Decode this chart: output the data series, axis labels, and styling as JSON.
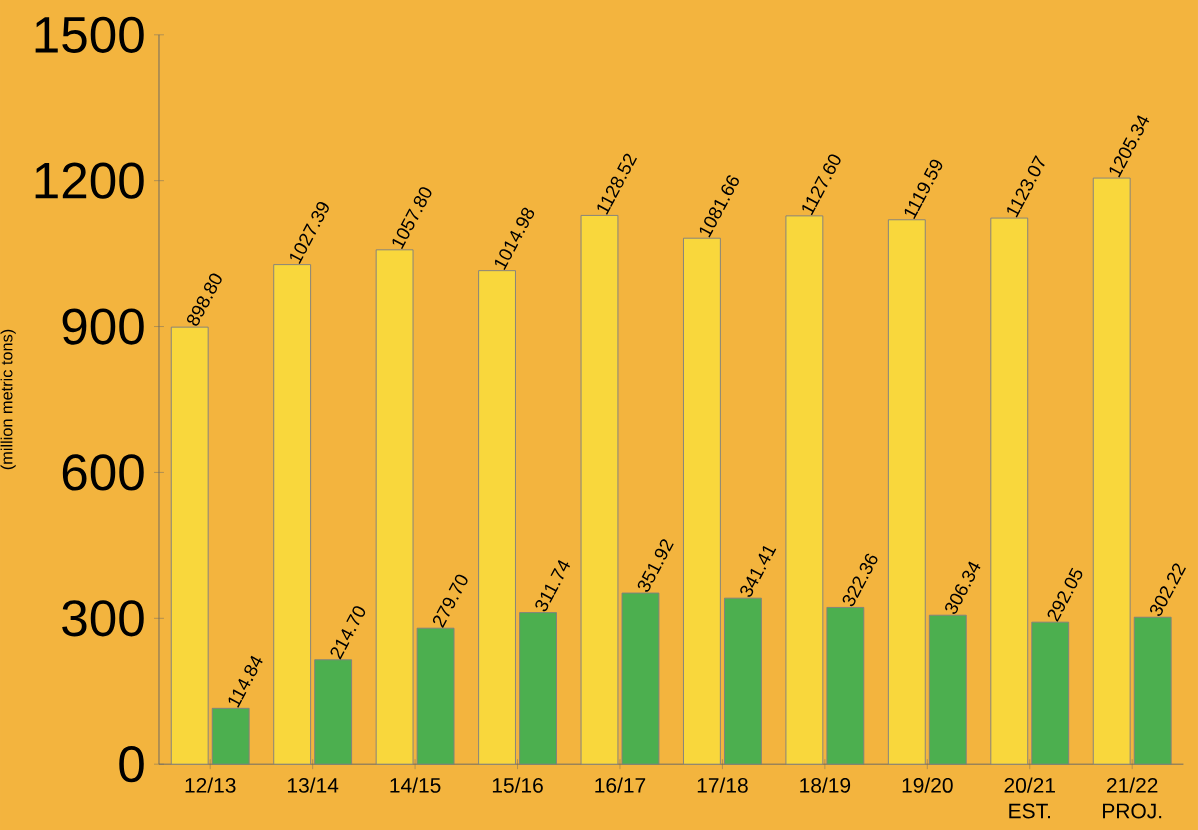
{
  "chart_data": {
    "type": "bar",
    "ylabel": "(million metric tons)",
    "categories": [
      "12/13",
      "13/14",
      "14/15",
      "15/16",
      "16/17",
      "17/18",
      "18/19",
      "19/20",
      "20/21 EST.",
      "21/22 PROJ."
    ],
    "series": [
      {
        "color": "#f9d73c",
        "values": [
          898.8,
          1027.39,
          1057.8,
          1014.98,
          1128.52,
          1081.66,
          1127.6,
          1119.59,
          1123.07,
          1205.34
        ],
        "value_labels": [
          "898.80",
          "1027.39",
          "1057.80",
          "1014.98",
          "1128.52",
          "1081.66",
          "1127.60",
          "1119.59",
          "1123.07",
          "1205.34"
        ]
      },
      {
        "color": "#4caf4f",
        "values": [
          114.84,
          214.7,
          279.7,
          311.74,
          351.92,
          341.41,
          322.36,
          306.34,
          292.05,
          302.22
        ],
        "value_labels": [
          "114.84",
          "214.70",
          "279.70",
          "311.74",
          "351.92",
          "341.41",
          "322.36",
          "306.34",
          "292.05",
          "302.22"
        ]
      }
    ],
    "ylim": [
      0,
      1500
    ],
    "yticks": [
      0,
      300,
      600,
      900,
      1200,
      1500
    ]
  }
}
